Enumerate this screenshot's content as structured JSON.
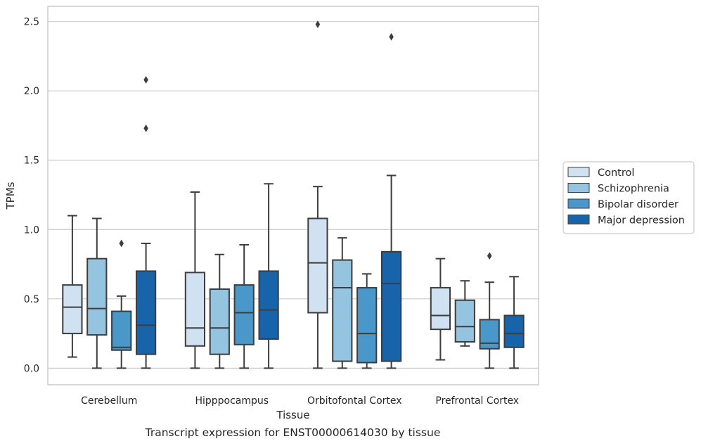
{
  "chart_data": {
    "type": "box",
    "xlabel": "Tissue",
    "ylabel": "TPMs",
    "ylim": [
      -0.12,
      2.61
    ],
    "yticks": [
      0.0,
      0.5,
      1.0,
      1.5,
      2.0,
      2.5
    ],
    "ytick_labels": [
      "0.0",
      "0.5",
      "1.0",
      "1.5",
      "2.0",
      "2.5"
    ],
    "grid": "horizontal",
    "legend_position": "right",
    "categories": [
      "Cerebellum",
      "Hipppocampus",
      "Orbitofontal Cortex",
      "Prefrontal Cortex"
    ],
    "series": [
      {
        "name": "Control",
        "color": "#d0e1f2",
        "boxes": [
          {
            "whislo": 0.08,
            "q1": 0.25,
            "med": 0.44,
            "q3": 0.6,
            "whishi": 1.1,
            "fliers": []
          },
          {
            "whislo": 0.0,
            "q1": 0.16,
            "med": 0.29,
            "q3": 0.69,
            "whishi": 1.27,
            "fliers": []
          },
          {
            "whislo": 0.0,
            "q1": 0.4,
            "med": 0.76,
            "q3": 1.08,
            "whishi": 1.31,
            "fliers": [
              2.48
            ]
          },
          {
            "whislo": 0.06,
            "q1": 0.28,
            "med": 0.38,
            "q3": 0.58,
            "whishi": 0.79,
            "fliers": []
          }
        ]
      },
      {
        "name": "Schizophrenia",
        "color": "#94c4df",
        "boxes": [
          {
            "whislo": 0.0,
            "q1": 0.24,
            "med": 0.43,
            "q3": 0.79,
            "whishi": 1.08,
            "fliers": []
          },
          {
            "whislo": 0.0,
            "q1": 0.1,
            "med": 0.29,
            "q3": 0.57,
            "whishi": 0.82,
            "fliers": []
          },
          {
            "whislo": 0.0,
            "q1": 0.05,
            "med": 0.58,
            "q3": 0.78,
            "whishi": 0.94,
            "fliers": []
          },
          {
            "whislo": 0.16,
            "q1": 0.19,
            "med": 0.3,
            "q3": 0.49,
            "whishi": 0.63,
            "fliers": []
          }
        ]
      },
      {
        "name": "Bipolar disorder",
        "color": "#4a98c9",
        "boxes": [
          {
            "whislo": 0.0,
            "q1": 0.13,
            "med": 0.15,
            "q3": 0.41,
            "whishi": 0.52,
            "fliers": [
              0.9
            ]
          },
          {
            "whislo": 0.0,
            "q1": 0.17,
            "med": 0.4,
            "q3": 0.6,
            "whishi": 0.89,
            "fliers": []
          },
          {
            "whislo": 0.0,
            "q1": 0.04,
            "med": 0.25,
            "q3": 0.58,
            "whishi": 0.68,
            "fliers": []
          },
          {
            "whislo": 0.0,
            "q1": 0.14,
            "med": 0.18,
            "q3": 0.35,
            "whishi": 0.62,
            "fliers": [
              0.81
            ]
          }
        ]
      },
      {
        "name": "Major depression",
        "color": "#1764ab",
        "boxes": [
          {
            "whislo": 0.0,
            "q1": 0.1,
            "med": 0.31,
            "q3": 0.7,
            "whishi": 0.9,
            "fliers": [
              1.73,
              2.08
            ]
          },
          {
            "whislo": 0.0,
            "q1": 0.21,
            "med": 0.42,
            "q3": 0.7,
            "whishi": 1.33,
            "fliers": []
          },
          {
            "whislo": 0.0,
            "q1": 0.05,
            "med": 0.61,
            "q3": 0.84,
            "whishi": 1.39,
            "fliers": [
              2.39
            ]
          },
          {
            "whislo": 0.0,
            "q1": 0.15,
            "med": 0.25,
            "q3": 0.38,
            "whishi": 0.66,
            "fliers": []
          }
        ]
      }
    ]
  },
  "caption": "Transcript expression for ENST00000614030 by tissue",
  "colors": {
    "grid": "#cccccc",
    "frame": "#cccccc",
    "line": "#3d3d3d"
  }
}
